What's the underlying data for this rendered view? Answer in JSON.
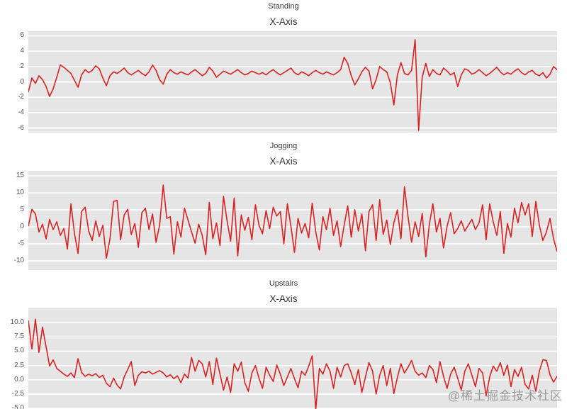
{
  "watermark": "@稀土掘金技术社区",
  "colors": {
    "figure_bg": "#ffffff",
    "plot_bg": "#e5e5e5",
    "grid": "#ffffff",
    "line": "#d92121",
    "tick": "#555555",
    "title": "#333333",
    "watermark": "#878787"
  },
  "chart_data": [
    {
      "type": "line",
      "suptitle": "Standing",
      "title": "X-Axis",
      "ytick_labels": [
        "6",
        "4",
        "2",
        "0",
        "-2",
        "-4",
        "-6"
      ],
      "ytick_values": [
        6,
        4,
        2,
        0,
        -2,
        -4,
        -6
      ],
      "ylim": [
        -6.6,
        6.6
      ],
      "grid": true,
      "legend": "none",
      "values": [
        -1.3,
        0.5,
        -0.2,
        0.8,
        0.3,
        -0.6,
        -1.9,
        -0.9,
        0.6,
        2.2,
        1.9,
        1.5,
        1.1,
        0.2,
        -0.7,
        0.9,
        1.6,
        1.2,
        1.5,
        2.1,
        1.7,
        0.5,
        -0.5,
        0.8,
        1.3,
        1.1,
        1.4,
        1.8,
        1.2,
        0.9,
        1.2,
        1.5,
        1.1,
        0.8,
        1.3,
        2.2,
        1.5,
        0.3,
        -0.3,
        1.0,
        1.6,
        1.2,
        1.0,
        1.3,
        1.1,
        0.9,
        1.3,
        1.6,
        1.2,
        0.8,
        1.1,
        1.9,
        1.4,
        0.6,
        1.0,
        1.4,
        1.2,
        1.0,
        1.3,
        1.6,
        1.2,
        0.9,
        1.1,
        1.4,
        1.2,
        1.0,
        1.2,
        0.9,
        1.3,
        1.6,
        1.2,
        0.9,
        1.2,
        1.5,
        1.8,
        1.2,
        0.9,
        1.3,
        1.1,
        0.8,
        1.2,
        1.5,
        1.2,
        1.0,
        1.3,
        1.1,
        0.9,
        1.2,
        1.6,
        3.2,
        2.4,
        0.8,
        -0.4,
        0.4,
        1.3,
        1.9,
        1.4,
        -0.9,
        0.3,
        2.0,
        1.6,
        1.3,
        -0.1,
        -3.0,
        0.9,
        2.5,
        1.1,
        0.9,
        1.5,
        5.5,
        -6.3,
        0.6,
        2.4,
        0.7,
        1.6,
        1.1,
        0.9,
        1.8,
        1.4,
        0.9,
        1.2,
        -0.6,
        0.9,
        1.7,
        1.5,
        1.0,
        1.2,
        1.6,
        1.2,
        0.8,
        1.1,
        1.5,
        1.9,
        1.3,
        0.9,
        1.2,
        1.0,
        1.4,
        1.7,
        1.2,
        0.9,
        1.3,
        1.5,
        1.0,
        0.8,
        1.2,
        0.5,
        1.0,
        2.0,
        1.6
      ]
    },
    {
      "type": "line",
      "suptitle": "Jogging",
      "title": "X-Axis",
      "ytick_labels": [
        "15",
        "10",
        "5",
        "0",
        "-5",
        "-10"
      ],
      "ytick_values": [
        15,
        10,
        5,
        0,
        -5,
        -10
      ],
      "ylim": [
        -12.7,
        16.5
      ],
      "grid": true,
      "legend": "none",
      "values": [
        0.3,
        5.2,
        3.8,
        -1.5,
        0.8,
        -3.5,
        2.2,
        -0.8,
        1.5,
        -2.5,
        -0.5,
        -6.5,
        6.8,
        -2.0,
        -7.8,
        4.5,
        5.8,
        -1.2,
        -4.0,
        1.8,
        -2.8,
        0.5,
        -9.2,
        -3.5,
        7.5,
        7.8,
        -3.8,
        3.5,
        5.2,
        -2.2,
        1.0,
        -6.0,
        4.2,
        5.5,
        -0.8,
        3.8,
        -4.5,
        0.5,
        12.3,
        2.5,
        3.0,
        -8.0,
        1.5,
        -3.0,
        5.5,
        2.0,
        -1.5,
        -4.8,
        0.8,
        -2.5,
        -8.2,
        7.2,
        -3.5,
        1.2,
        -5.5,
        9.0,
        1.8,
        -4.2,
        8.5,
        -8.5,
        3.5,
        -1.0,
        2.8,
        -3.8,
        6.5,
        0.5,
        -2.0,
        4.8,
        -0.5,
        5.8,
        3.2,
        4.5,
        -5.0,
        6.8,
        0.2,
        -7.5,
        2.5,
        -1.8,
        1.0,
        -3.2,
        7.0,
        -1.5,
        -6.8,
        3.0,
        -0.8,
        5.5,
        -2.5,
        1.8,
        -5.8,
        0.5,
        6.2,
        -3.0,
        5.0,
        -1.2,
        3.8,
        -7.0,
        4.5,
        6.5,
        -4.0,
        8.0,
        -2.2,
        2.0,
        -5.2,
        1.2,
        5.0,
        -3.5,
        11.8,
        3.0,
        -4.5,
        1.5,
        -2.8,
        4.0,
        -8.8,
        0.8,
        6.8,
        -1.5,
        2.5,
        -6.2,
        0.2,
        4.2,
        -2.0,
        -0.5,
        1.8,
        -1.2,
        0.5,
        2.2,
        -0.8,
        1.2,
        6.5,
        -3.8,
        6.8,
        1.5,
        -2.5,
        4.5,
        -7.8,
        1.0,
        -3.0,
        5.5,
        1.2,
        7.2,
        3.5,
        6.8,
        -2.8,
        7.5,
        0.5,
        -4.0,
        -1.5,
        2.5,
        -3.5,
        -7.2
      ]
    },
    {
      "type": "line",
      "suptitle": "Upstairs",
      "title": "X-Axis",
      "ytick_labels": [
        "10.0",
        "7.5",
        "5.0",
        "2.5",
        "0.0",
        "-2.5",
        "-5.0"
      ],
      "ytick_values": [
        10.0,
        7.5,
        5.0,
        2.5,
        0.0,
        -2.5,
        -5.0
      ],
      "ylim": [
        -5.6,
        12.5
      ],
      "grid": true,
      "legend": "none",
      "values": [
        10.3,
        5.4,
        10.6,
        4.8,
        9.2,
        5.8,
        2.4,
        3.5,
        2.0,
        1.5,
        1.0,
        0.6,
        1.2,
        0.4,
        3.7,
        1.3,
        0.6,
        1.0,
        0.7,
        1.1,
        0.4,
        0.8,
        -0.6,
        -1.2,
        0.3,
        -0.9,
        -1.6,
        0.5,
        1.8,
        3.2,
        -1.0,
        0.8,
        1.4,
        1.2,
        1.5,
        1.0,
        1.3,
        1.6,
        1.2,
        0.5,
        0.9,
        0.2,
        0.7,
        -0.5,
        1.0,
        0.3,
        3.9,
        1.5,
        3.4,
        2.8,
        0.5,
        3.2,
        -0.8,
        3.8,
        1.0,
        -1.8,
        0.5,
        -2.2,
        2.8,
        1.5,
        3.1,
        -0.5,
        -2.0,
        1.2,
        2.5,
        0.3,
        -1.5,
        2.2,
        0.8,
        -0.3,
        2.6,
        1.0,
        -1.0,
        0.5,
        2.0,
        0.2,
        -1.4,
        1.5,
        0.8,
        2.4,
        4.2,
        -5.2,
        2.0,
        1.0,
        2.8,
        1.5,
        -1.5,
        2.2,
        0.5,
        2.5,
        2.8,
        1.2,
        -0.8,
        1.8,
        -2.2,
        0.5,
        3.0,
        1.5,
        -2.5,
        0.8,
        2.5,
        -1.0,
        2.0,
        -2.4,
        0.4,
        2.8,
        1.2,
        2.2,
        3.4,
        1.5,
        0.8,
        1.2,
        0.4,
        2.5,
        1.8,
        -0.5,
        3.2,
        0.6,
        -1.5,
        1.0,
        2.2,
        0.3,
        -1.8,
        1.5,
        2.8,
        0.8,
        -1.2,
        2.0,
        1.2,
        -2.8,
        0.5,
        2.4,
        1.5,
        3.0,
        0.8,
        2.6,
        -1.2,
        1.8,
        0.6,
        2.2,
        -0.8,
        -1.6,
        0.8,
        -2.0,
        1.5,
        3.5,
        3.4,
        0.9,
        -0.4,
        0.6
      ]
    }
  ]
}
